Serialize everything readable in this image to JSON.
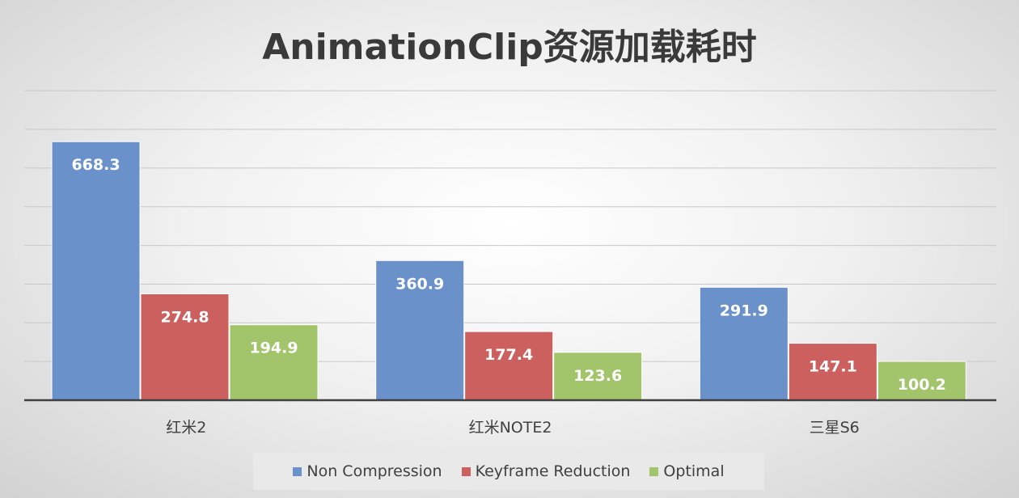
{
  "chart_data": {
    "type": "bar",
    "title": "AnimationClip资源加载耗时",
    "xlabel": "",
    "ylabel": "",
    "categories": [
      "红米2",
      "红米NOTE2",
      "三星S6"
    ],
    "series": [
      {
        "name": "Non Compression",
        "values": [
          668.3,
          360.9,
          291.9
        ],
        "color": "#6a91c9"
      },
      {
        "name": "Keyframe Reduction",
        "values": [
          274.8,
          177.4,
          147.1
        ],
        "color": "#cb605e"
      },
      {
        "name": "Optimal",
        "values": [
          194.9,
          123.6,
          100.2
        ],
        "color": "#a2c46a"
      }
    ],
    "ylim": [
      0,
      800
    ],
    "grid": true,
    "data_labels": true,
    "legend_position": "bottom"
  }
}
